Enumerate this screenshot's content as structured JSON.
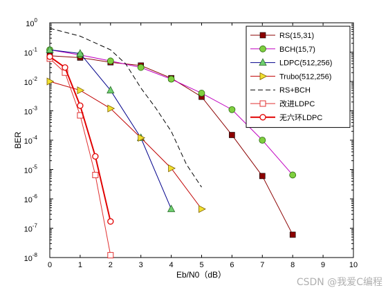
{
  "watermark": "CSDN @我爱C编程",
  "chart_data": {
    "type": "line",
    "title": "",
    "xlabel": "Eb/N0（dB）",
    "ylabel": "BER",
    "xlim": [
      0,
      10
    ],
    "ylim_exponents": [
      -8,
      0
    ],
    "yscale": "log",
    "xticks": [
      "0",
      "1",
      "2",
      "3",
      "4",
      "5",
      "6",
      "7",
      "8",
      "9",
      "10"
    ],
    "yticks": [
      {
        "base": "10",
        "exp": "0",
        "value": 1
      },
      {
        "base": "10",
        "exp": "-1",
        "value": 0.1
      },
      {
        "base": "10",
        "exp": "-2",
        "value": 0.01
      },
      {
        "base": "10",
        "exp": "-3",
        "value": 0.001
      },
      {
        "base": "10",
        "exp": "-4",
        "value": 0.0001
      },
      {
        "base": "10",
        "exp": "-5",
        "value": 1e-05
      },
      {
        "base": "10",
        "exp": "-6",
        "value": 1e-06
      },
      {
        "base": "10",
        "exp": "-7",
        "value": 1e-07
      },
      {
        "base": "10",
        "exp": "-8",
        "value": 1e-08
      }
    ],
    "grid": false,
    "legend_position": "top-right",
    "series": [
      {
        "name": "RS(15,31)",
        "color": "#8b0000",
        "marker": "square-filled",
        "line": "solid",
        "x": [
          0,
          1,
          2,
          3,
          4,
          5,
          6,
          7,
          8
        ],
        "y": [
          0.075,
          0.065,
          0.045,
          0.035,
          0.013,
          0.003,
          0.00015,
          6e-06,
          6e-08
        ]
      },
      {
        "name": "BCH(15,7)",
        "color": "#c000c0",
        "marker": "circle-green",
        "line": "solid",
        "x": [
          0,
          1,
          2,
          3,
          4,
          5,
          6,
          7,
          8
        ],
        "y": [
          0.12,
          0.08,
          0.05,
          0.03,
          0.012,
          0.004,
          0.0011,
          0.0001,
          6.5e-06
        ]
      },
      {
        "name": "LDPC(512,256)",
        "color": "#00008b",
        "marker": "triangle-up-green",
        "line": "solid",
        "x": [
          0,
          1,
          2,
          3,
          4
        ],
        "y": [
          0.12,
          0.09,
          0.005,
          0.00012,
          4.5e-07
        ]
      },
      {
        "name": "Trubo(512,256)",
        "color": "#c00000",
        "marker": "triangle-right-yellow",
        "line": "solid",
        "x": [
          0,
          1,
          2,
          3,
          4,
          5
        ],
        "y": [
          0.01,
          0.005,
          0.0012,
          0.00012,
          1.1e-05,
          4.5e-07
        ]
      },
      {
        "name": "RS+BCH",
        "color": "#000000",
        "marker": "none",
        "line": "dashed",
        "x": [
          0,
          1,
          2,
          2.5,
          3,
          3.5,
          4,
          4.5,
          5
        ],
        "y": [
          0.65,
          0.35,
          0.12,
          0.04,
          0.006,
          0.0012,
          0.0002,
          1.5e-05,
          2.5e-06
        ]
      },
      {
        "name": "改进LDPC",
        "color": "#e03030",
        "marker": "square-open",
        "line": "solid",
        "x": [
          0,
          0.5,
          1,
          1.5,
          2
        ],
        "y": [
          0.06,
          0.02,
          0.0007,
          6.5e-06,
          1.2e-08
        ]
      },
      {
        "name": "无六环LDPC",
        "color": "#e00000",
        "marker": "circle-open",
        "line": "solid-thick",
        "x": [
          0,
          0.5,
          1,
          1.5,
          2
        ],
        "y": [
          0.07,
          0.03,
          0.0015,
          2.8e-05,
          1.7e-07
        ]
      }
    ]
  }
}
